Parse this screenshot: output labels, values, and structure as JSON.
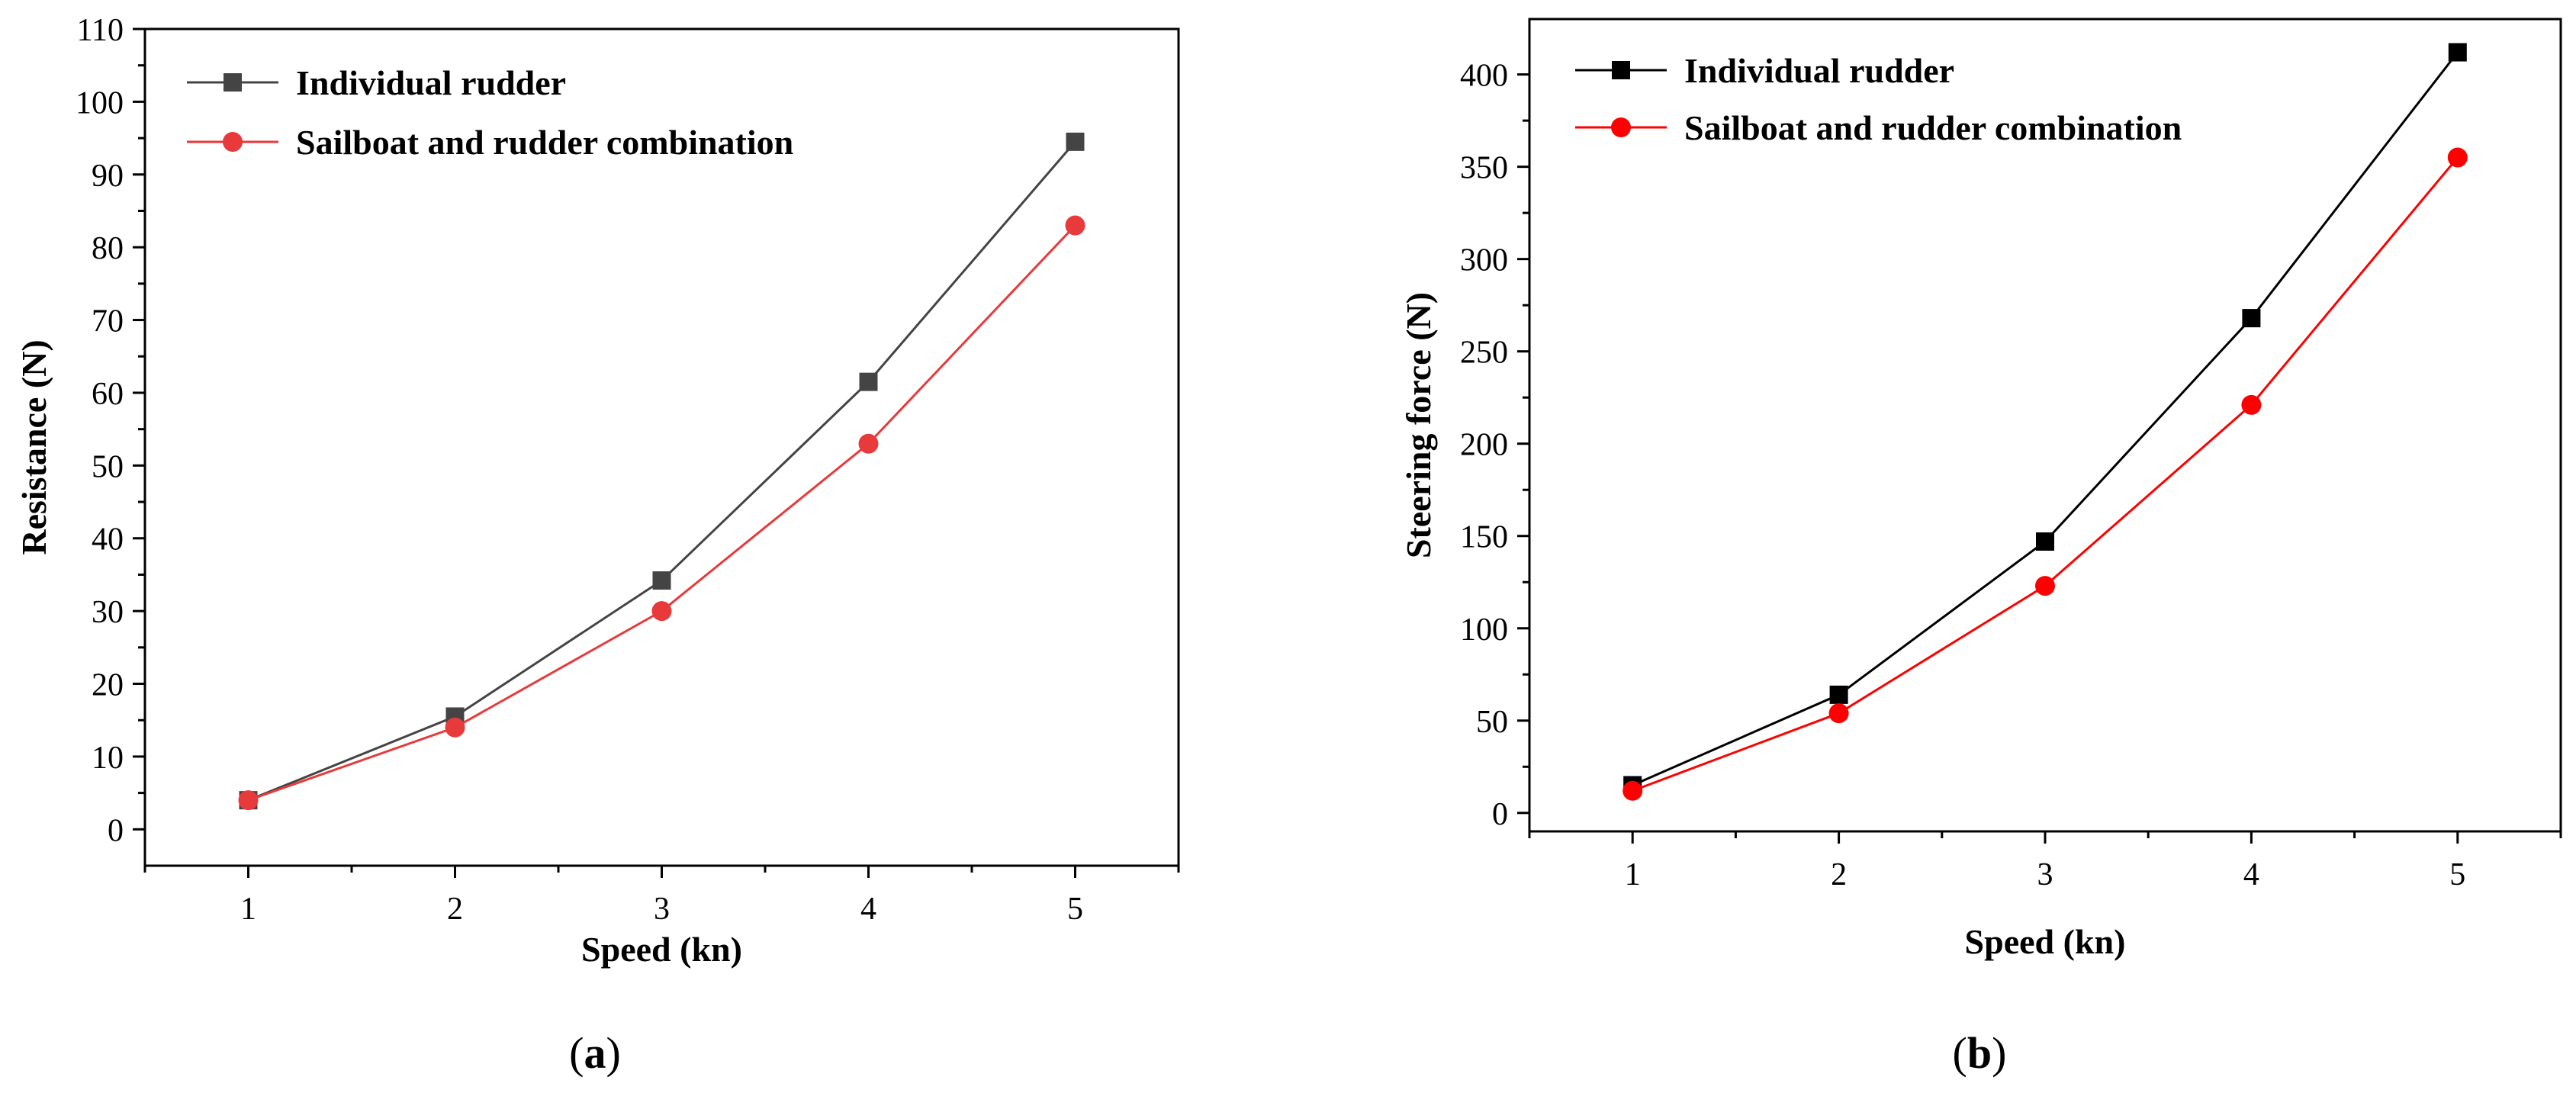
{
  "chart_data": [
    {
      "type": "line",
      "panel_label_open": "(",
      "panel_label_letter": "a",
      "panel_label_close": ")",
      "xlabel": "Speed (kn)",
      "ylabel": "Resistance (N)",
      "x": [
        1,
        2,
        3,
        4,
        5
      ],
      "xlim": [
        0.5,
        5.5
      ],
      "ylim": [
        -5,
        110
      ],
      "yticks": [
        0,
        10,
        20,
        30,
        40,
        50,
        60,
        70,
        80,
        90,
        100,
        110
      ],
      "legend_position": "top-left",
      "series": [
        {
          "name": "Individual rudder",
          "marker": "square",
          "color": "#444444",
          "values": [
            4,
            15.5,
            34.2,
            61.5,
            94.5
          ]
        },
        {
          "name": "Sailboat and rudder combination",
          "marker": "circle",
          "color": "#e8393b",
          "values": [
            4,
            14,
            30,
            53,
            83
          ]
        }
      ]
    },
    {
      "type": "line",
      "panel_label_open": "(",
      "panel_label_letter": "b",
      "panel_label_close": ")",
      "xlabel": "Speed (kn)",
      "ylabel": "Steering force (N)",
      "x": [
        1,
        2,
        3,
        4,
        5
      ],
      "xlim": [
        0.5,
        5.5
      ],
      "ylim": [
        -10,
        430
      ],
      "yticks": [
        0,
        50,
        100,
        150,
        200,
        250,
        300,
        350,
        400
      ],
      "legend_position": "top-left",
      "series": [
        {
          "name": "Individual rudder",
          "marker": "square",
          "color": "#000000",
          "values": [
            15,
            64,
            147,
            268,
            412
          ]
        },
        {
          "name": "Sailboat and rudder combination",
          "marker": "circle",
          "color": "#ff0000",
          "values": [
            12,
            54,
            123,
            221,
            355
          ]
        }
      ]
    }
  ]
}
